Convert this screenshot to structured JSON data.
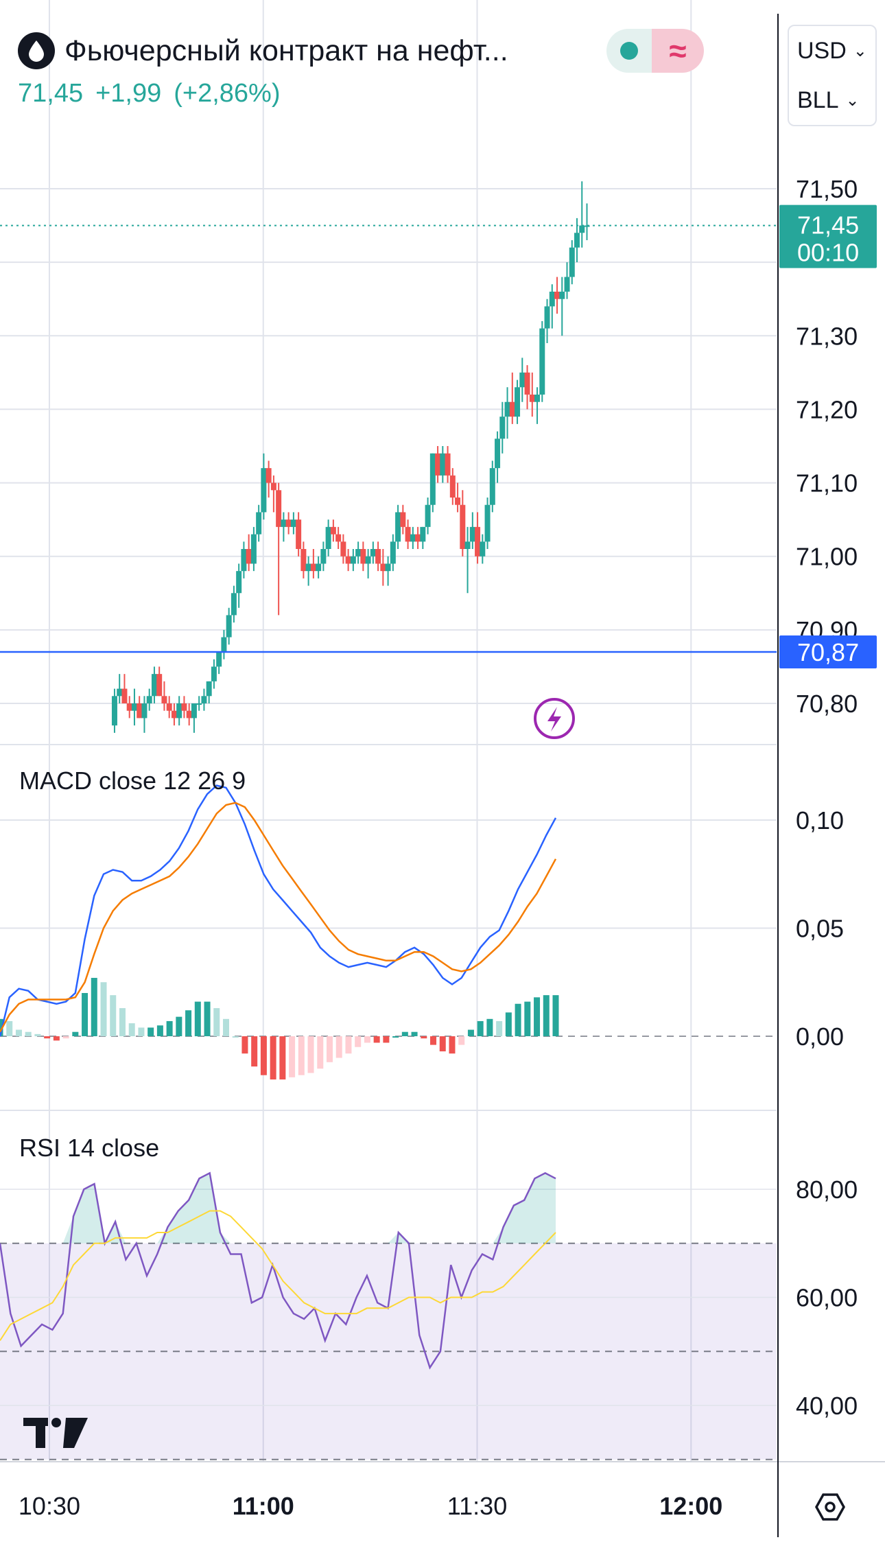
{
  "header": {
    "title": "Фьючерсный контракт на нефт...",
    "price": "71,45",
    "change": "+1,99",
    "change_pct": "(+2,86%)",
    "icon": "oil-drop-icon",
    "status_icon": "market-status-icon",
    "delay_icon": "wave-icon"
  },
  "selectors": {
    "currency": "USD",
    "unit": "BLL"
  },
  "colors": {
    "up": "#26a69a",
    "down": "#ef5350",
    "macd": "#2962ff",
    "signal": "#f57c00",
    "rsi": "#7e57c2",
    "rsi_ma": "#fdd835",
    "hline": "#2962ff"
  },
  "price_axis": [
    "71,50",
    "71,30",
    "71,20",
    "71,10",
    "71,00",
    "70,90",
    "70,80"
  ],
  "last_price_tag": {
    "price": "71,45",
    "countdown": "00:10"
  },
  "hline_tag": "70,87",
  "macd": {
    "label": "MACD close 12 26 9",
    "axis": [
      "0,10",
      "0,05",
      "0,00"
    ]
  },
  "rsi": {
    "label": "RSI 14 close",
    "axis": [
      "80,00",
      "60,00",
      "40,00"
    ]
  },
  "time_axis": [
    "10:30",
    "11:00",
    "11:30",
    "12:00"
  ],
  "chart_data": [
    {
      "type": "candlestick",
      "title": "Фьючерсный контракт на нефт...",
      "x_range": [
        "10:25",
        "12:12"
      ],
      "y_range": [
        70.75,
        71.57
      ],
      "hline": 70.87,
      "last_price": 71.45,
      "candles": [
        [
          70.77,
          70.82,
          70.76,
          70.81
        ],
        [
          70.81,
          70.84,
          70.8,
          70.82
        ],
        [
          70.82,
          70.84,
          70.8,
          70.8
        ],
        [
          70.8,
          70.81,
          70.78,
          70.79
        ],
        [
          70.79,
          70.82,
          70.77,
          70.8
        ],
        [
          70.8,
          70.81,
          70.78,
          70.78
        ],
        [
          70.78,
          70.81,
          70.76,
          70.8
        ],
        [
          70.8,
          70.82,
          70.79,
          70.81
        ],
        [
          70.81,
          70.85,
          70.8,
          70.84
        ],
        [
          70.84,
          70.85,
          70.81,
          70.81
        ],
        [
          70.81,
          70.83,
          70.79,
          70.8
        ],
        [
          70.8,
          70.81,
          70.78,
          70.79
        ],
        [
          70.79,
          70.8,
          70.77,
          70.78
        ],
        [
          70.78,
          70.81,
          70.77,
          70.8
        ],
        [
          70.8,
          70.81,
          70.78,
          70.79
        ],
        [
          70.79,
          70.8,
          70.77,
          70.78
        ],
        [
          70.78,
          70.8,
          70.76,
          70.8
        ],
        [
          70.8,
          70.81,
          70.79,
          70.8
        ],
        [
          70.8,
          70.82,
          70.79,
          70.81
        ],
        [
          70.81,
          70.83,
          70.8,
          70.83
        ],
        [
          70.83,
          70.86,
          70.82,
          70.85
        ],
        [
          70.85,
          70.87,
          70.84,
          70.87
        ],
        [
          70.87,
          70.9,
          70.86,
          70.89
        ],
        [
          70.89,
          70.93,
          70.88,
          70.92
        ],
        [
          70.92,
          70.96,
          70.91,
          70.95
        ],
        [
          70.95,
          70.99,
          70.93,
          70.98
        ],
        [
          70.98,
          71.02,
          70.97,
          71.01
        ],
        [
          71.01,
          71.03,
          70.98,
          70.99
        ],
        [
          70.99,
          71.04,
          70.98,
          71.03
        ],
        [
          71.03,
          71.07,
          71.02,
          71.06
        ],
        [
          71.06,
          71.14,
          71.05,
          71.12
        ],
        [
          71.12,
          71.13,
          71.08,
          71.1
        ],
        [
          71.1,
          71.11,
          71.06,
          71.09
        ],
        [
          71.09,
          71.1,
          70.92,
          71.04
        ],
        [
          71.04,
          71.06,
          71.02,
          71.05
        ],
        [
          71.05,
          71.06,
          71.03,
          71.04
        ],
        [
          71.04,
          71.06,
          71.03,
          71.05
        ],
        [
          71.05,
          71.06,
          71.0,
          71.01
        ],
        [
          71.01,
          71.02,
          70.97,
          70.98
        ],
        [
          70.98,
          71.0,
          70.96,
          70.99
        ],
        [
          70.99,
          71.01,
          70.97,
          70.98
        ],
        [
          70.98,
          71.0,
          70.97,
          70.99
        ],
        [
          70.99,
          71.02,
          70.98,
          71.01
        ],
        [
          71.01,
          71.05,
          71.0,
          71.04
        ],
        [
          71.04,
          71.05,
          71.02,
          71.03
        ],
        [
          71.03,
          71.04,
          71.01,
          71.02
        ],
        [
          71.02,
          71.03,
          70.99,
          71.0
        ],
        [
          71.0,
          71.01,
          70.98,
          70.99
        ],
        [
          70.99,
          71.01,
          70.98,
          71.0
        ],
        [
          71.0,
          71.02,
          70.99,
          71.01
        ],
        [
          71.01,
          71.02,
          70.98,
          70.99
        ],
        [
          70.99,
          71.01,
          70.97,
          71.0
        ],
        [
          71.0,
          71.02,
          70.99,
          71.01
        ],
        [
          71.01,
          71.02,
          70.98,
          70.99
        ],
        [
          70.99,
          71.01,
          70.96,
          70.98
        ],
        [
          70.98,
          71.0,
          70.96,
          70.99
        ],
        [
          70.99,
          71.03,
          70.98,
          71.02
        ],
        [
          71.02,
          71.07,
          71.01,
          71.06
        ],
        [
          71.06,
          71.07,
          71.03,
          71.04
        ],
        [
          71.04,
          71.05,
          71.01,
          71.02
        ],
        [
          71.02,
          71.04,
          71.01,
          71.03
        ],
        [
          71.03,
          71.04,
          71.01,
          71.02
        ],
        [
          71.02,
          71.04,
          71.01,
          71.04
        ],
        [
          71.04,
          71.08,
          71.03,
          71.07
        ],
        [
          71.07,
          71.14,
          71.06,
          71.14
        ],
        [
          71.14,
          71.15,
          71.1,
          71.11
        ],
        [
          71.11,
          71.15,
          71.1,
          71.14
        ],
        [
          71.14,
          71.15,
          71.1,
          71.11
        ],
        [
          71.11,
          71.12,
          71.07,
          71.08
        ],
        [
          71.08,
          71.1,
          71.06,
          71.07
        ],
        [
          71.07,
          71.09,
          71.0,
          71.01
        ],
        [
          71.01,
          71.04,
          70.95,
          71.02
        ],
        [
          71.02,
          71.06,
          71.01,
          71.04
        ],
        [
          71.04,
          71.06,
          70.99,
          71.0
        ],
        [
          71.0,
          71.03,
          70.99,
          71.02
        ],
        [
          71.02,
          71.08,
          71.01,
          71.07
        ],
        [
          71.07,
          71.13,
          71.06,
          71.12
        ],
        [
          71.12,
          71.17,
          71.1,
          71.16
        ],
        [
          71.16,
          71.21,
          71.14,
          71.19
        ],
        [
          71.19,
          71.23,
          71.16,
          71.21
        ],
        [
          71.21,
          71.25,
          71.18,
          71.19
        ],
        [
          71.19,
          71.24,
          71.18,
          71.23
        ],
        [
          71.23,
          71.27,
          71.21,
          71.25
        ],
        [
          71.25,
          71.26,
          71.2,
          71.22
        ],
        [
          71.22,
          71.25,
          71.19,
          71.21
        ],
        [
          71.21,
          71.23,
          71.18,
          71.22
        ],
        [
          71.22,
          71.32,
          71.21,
          71.31
        ],
        [
          71.31,
          71.35,
          71.29,
          71.34
        ],
        [
          71.34,
          71.37,
          71.31,
          71.36
        ],
        [
          71.36,
          71.38,
          71.33,
          71.35
        ],
        [
          71.35,
          71.38,
          71.3,
          71.36
        ],
        [
          71.36,
          71.4,
          71.35,
          71.38
        ],
        [
          71.38,
          71.43,
          71.37,
          71.42
        ],
        [
          71.42,
          71.46,
          71.4,
          71.44
        ],
        [
          71.44,
          71.51,
          71.42,
          71.45
        ],
        [
          71.45,
          71.48,
          71.43,
          71.45
        ]
      ]
    },
    {
      "type": "line",
      "title": "MACD close 12 26 9",
      "x_range": [
        "10:25",
        "12:12"
      ],
      "y_range": [
        -0.035,
        0.125
      ],
      "series": [
        {
          "values": [
            0.0,
            0.018,
            0.022,
            0.021,
            0.017,
            0.016,
            0.015,
            0.016,
            0.02,
            0.045,
            0.065,
            0.075,
            0.077,
            0.076,
            0.072,
            0.072,
            0.074,
            0.077,
            0.081,
            0.087,
            0.095,
            0.105,
            0.112,
            0.116,
            0.115,
            0.108,
            0.098,
            0.086,
            0.075,
            0.068,
            0.063,
            0.058,
            0.053,
            0.048,
            0.041,
            0.037,
            0.034,
            0.032,
            0.033,
            0.034,
            0.033,
            0.032,
            0.035,
            0.039,
            0.041,
            0.038,
            0.033,
            0.027,
            0.024,
            0.027,
            0.034,
            0.041,
            0.046,
            0.049,
            0.058,
            0.068,
            0.076,
            0.084,
            0.093,
            0.101
          ]
        },
        {
          "values": [
            0.002,
            0.01,
            0.015,
            0.017,
            0.017,
            0.017,
            0.017,
            0.017,
            0.018,
            0.025,
            0.038,
            0.05,
            0.058,
            0.063,
            0.066,
            0.068,
            0.07,
            0.072,
            0.074,
            0.078,
            0.083,
            0.089,
            0.096,
            0.103,
            0.107,
            0.108,
            0.106,
            0.1,
            0.093,
            0.086,
            0.079,
            0.073,
            0.067,
            0.061,
            0.055,
            0.049,
            0.044,
            0.04,
            0.038,
            0.037,
            0.036,
            0.035,
            0.035,
            0.037,
            0.039,
            0.039,
            0.037,
            0.034,
            0.031,
            0.03,
            0.031,
            0.034,
            0.038,
            0.042,
            0.047,
            0.053,
            0.06,
            0.066,
            0.074,
            0.082
          ]
        }
      ],
      "histogram": [
        0.008,
        0.007,
        0.003,
        0.002,
        0.001,
        -0.001,
        -0.002,
        -0.001,
        0.002,
        0.02,
        0.027,
        0.025,
        0.019,
        0.013,
        0.006,
        0.004,
        0.004,
        0.005,
        0.007,
        0.009,
        0.012,
        0.016,
        0.016,
        0.013,
        0.008,
        0.0,
        -0.008,
        -0.014,
        -0.018,
        -0.02,
        -0.02,
        -0.019,
        -0.018,
        -0.017,
        -0.015,
        -0.012,
        -0.01,
        -0.008,
        -0.005,
        -0.003,
        -0.003,
        -0.003,
        0.0,
        0.002,
        0.002,
        -0.001,
        -0.004,
        -0.007,
        -0.008,
        -0.004,
        0.003,
        0.007,
        0.008,
        0.007,
        0.011,
        0.015,
        0.016,
        0.018,
        0.019,
        0.019
      ]
    },
    {
      "type": "line",
      "title": "RSI 14 close",
      "x_range": [
        "10:25",
        "12:12"
      ],
      "y_range": [
        29,
        90
      ],
      "bands": [
        70,
        50,
        30
      ],
      "series": [
        {
          "values": [
            70,
            57,
            51,
            53,
            55,
            54,
            57,
            75,
            80,
            81,
            70,
            74,
            67,
            70,
            64,
            68,
            73,
            76,
            78,
            82,
            83,
            72,
            68,
            68,
            59,
            60,
            66,
            60,
            57,
            56,
            58,
            52,
            57,
            55,
            60,
            64,
            59,
            58,
            72,
            70,
            53,
            47,
            50,
            66,
            60,
            65,
            68,
            67,
            73,
            77,
            78,
            82,
            83,
            82
          ]
        },
        {
          "values": [
            52,
            55,
            56,
            57,
            58,
            59,
            62,
            66,
            68,
            70,
            70,
            71,
            71,
            71,
            71,
            72,
            72,
            73,
            74,
            75,
            76,
            76,
            75,
            73,
            71,
            69,
            66,
            63,
            61,
            59,
            58,
            57,
            57,
            57,
            57,
            58,
            58,
            58,
            59,
            60,
            60,
            60,
            59,
            60,
            60,
            60,
            61,
            61,
            62,
            64,
            66,
            68,
            70,
            72
          ]
        }
      ]
    }
  ]
}
